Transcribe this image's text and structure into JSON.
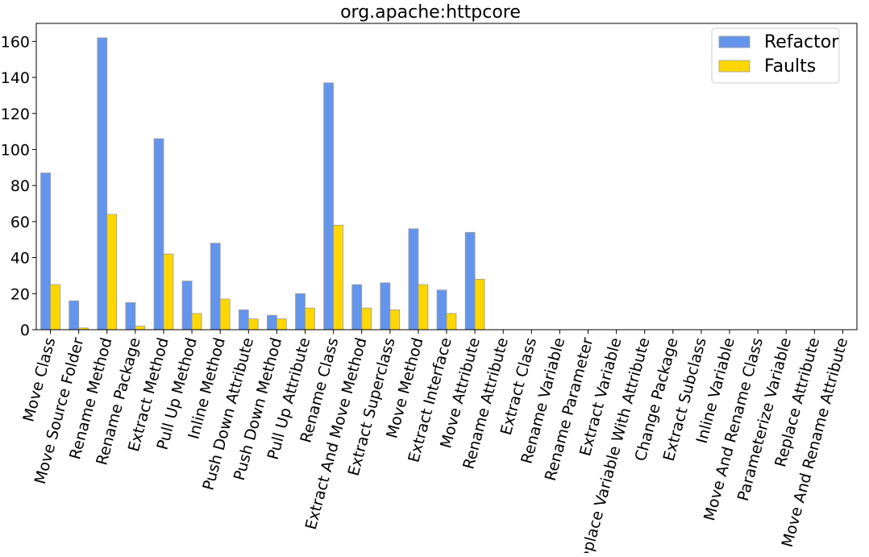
{
  "chart_data": {
    "type": "bar",
    "title": "org.apache:httpcore",
    "xlabel": "",
    "ylabel": "",
    "ylim": [
      0,
      170
    ],
    "yticks": [
      0,
      20,
      40,
      60,
      80,
      100,
      120,
      140,
      160
    ],
    "grid": false,
    "legend_position": "top-right",
    "categories": [
      "Move Class",
      "Move Source Folder",
      "Rename Method",
      "Rename Package",
      "Extract Method",
      "Pull Up Method",
      "Inline Method",
      "Push Down Attribute",
      "Push Down Method",
      "Pull Up Attribute",
      "Rename Class",
      "Extract And Move Method",
      "Extract Superclass",
      "Move Method",
      "Extract Interface",
      "Move Attribute",
      "Rename Attribute",
      "Extract Class",
      "Rename Variable",
      "Rename Parameter",
      "Extract Variable",
      "Replace Variable With Attribute",
      "Change Package",
      "Extract Subclass",
      "Inline Variable",
      "Move And Rename Class",
      "Parameterize Variable",
      "Replace Attribute",
      "Move And Rename Attribute"
    ],
    "series": [
      {
        "name": "Refactor",
        "color": "#6495ed",
        "values": [
          87,
          16,
          162,
          15,
          106,
          27,
          48,
          11,
          8,
          20,
          137,
          25,
          26,
          56,
          22,
          54,
          0,
          0,
          0,
          0,
          0,
          0,
          0,
          0,
          0,
          0,
          0,
          0,
          0
        ]
      },
      {
        "name": "Faults",
        "color": "#ffd700",
        "values": [
          25,
          1,
          64,
          2,
          42,
          9,
          17,
          6,
          6,
          12,
          58,
          12,
          11,
          25,
          9,
          28,
          0,
          0,
          0,
          0,
          0,
          0,
          0,
          0,
          0,
          0,
          0,
          0,
          0
        ]
      }
    ]
  }
}
